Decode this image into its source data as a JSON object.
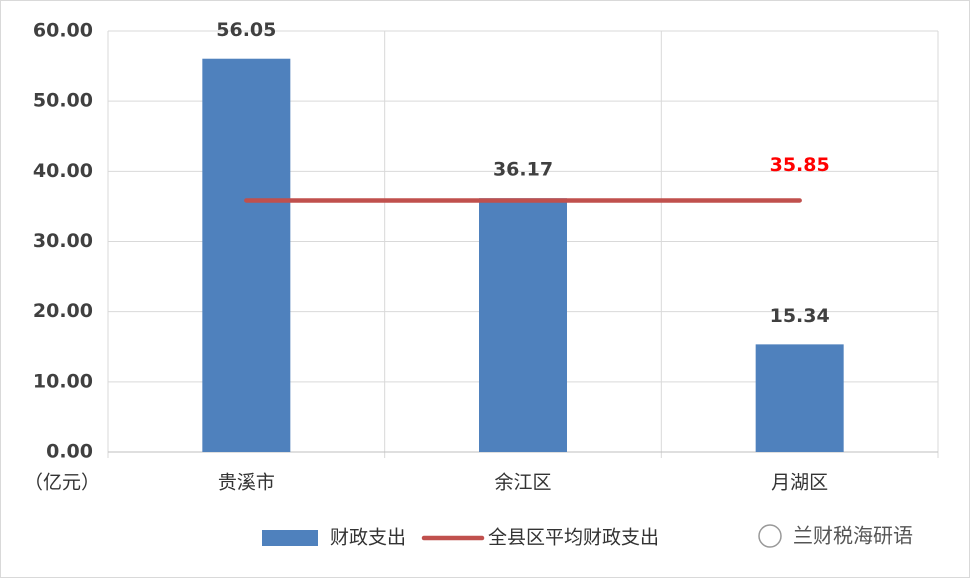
{
  "chart_data": {
    "type": "bar",
    "unit_label": "（亿元）",
    "categories": [
      "贵溪市",
      "余江区",
      "月湖区"
    ],
    "series": [
      {
        "name": "财政支出",
        "type": "bar",
        "color": "#4f81bd",
        "values": [
          56.05,
          36.17,
          15.34
        ]
      },
      {
        "name": "全县区平均财政支出",
        "type": "line",
        "color": "#c0504d",
        "values": [
          35.85,
          35.85,
          35.85
        ]
      }
    ],
    "ylim": [
      0,
      60
    ],
    "yticks": [
      {
        "value": 0,
        "label": "0.00"
      },
      {
        "value": 10,
        "label": "10.00"
      },
      {
        "value": 20,
        "label": "20.00"
      },
      {
        "value": 30,
        "label": "30.00"
      },
      {
        "value": 40,
        "label": "40.00"
      },
      {
        "value": 50,
        "label": "50.00"
      },
      {
        "value": 60,
        "label": "60.00"
      }
    ],
    "grid": true,
    "legend": "bottom",
    "watermark": "兰财税海研语"
  }
}
